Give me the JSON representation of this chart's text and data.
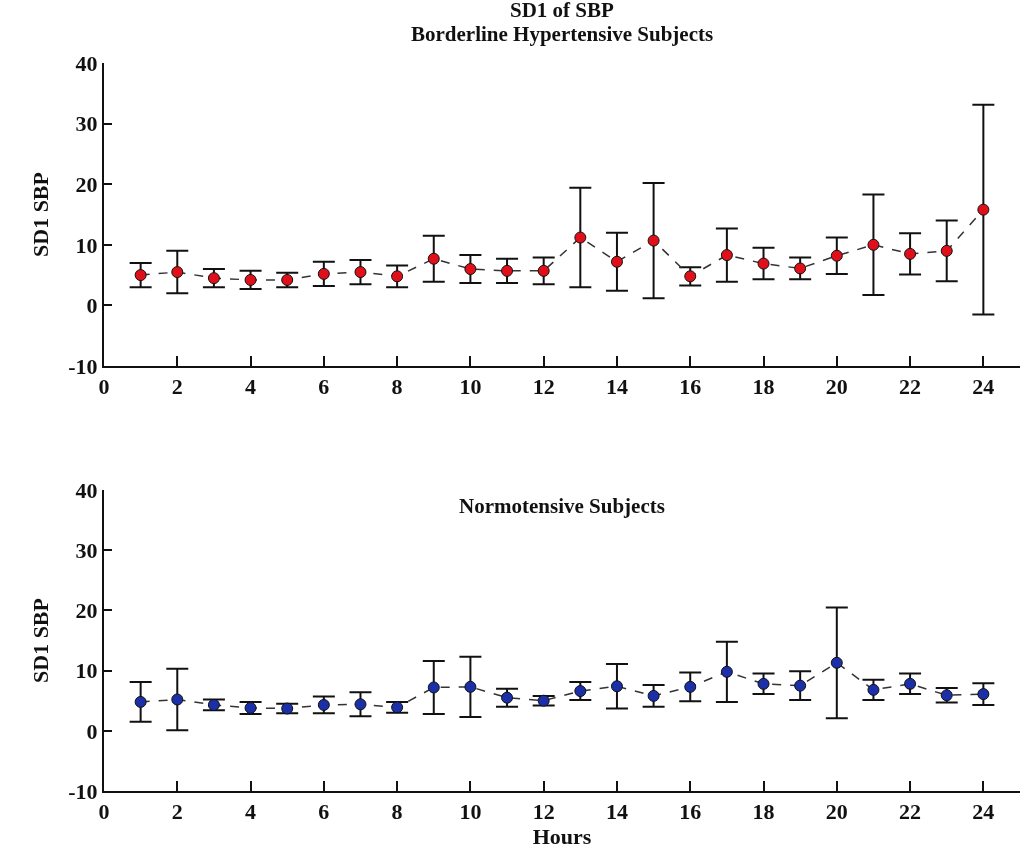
{
  "chart_data": [
    {
      "type": "line",
      "title": "SD1 of SBP",
      "subtitle": "Borderline Hypertensive Subjects",
      "ylabel": "SD1 SBP",
      "x": [
        1,
        2,
        3,
        4,
        5,
        6,
        7,
        8,
        9,
        10,
        11,
        12,
        13,
        14,
        15,
        16,
        17,
        18,
        19,
        20,
        21,
        22,
        23,
        24
      ],
      "series": [
        {
          "color": "#e0101a",
          "values": [
            5,
            5.5,
            4.5,
            4.2,
            4.2,
            5.2,
            5.5,
            4.8,
            7.7,
            6,
            5.7,
            5.7,
            11.2,
            7.2,
            10.7,
            4.8,
            8.3,
            6.9,
            6.1,
            8.2,
            10,
            8.5,
            9,
            15.8
          ],
          "errors": [
            2,
            3.5,
            1.5,
            1.5,
            1.2,
            2,
            2,
            1.8,
            3.8,
            2.3,
            2,
            2.2,
            8.2,
            4.8,
            9.5,
            1.5,
            4.4,
            2.6,
            1.8,
            3,
            8.3,
            3.4,
            5,
            17.3
          ]
        }
      ],
      "xlim": [
        0,
        25
      ],
      "xticks": [
        0,
        2,
        4,
        6,
        8,
        10,
        12,
        14,
        16,
        18,
        20,
        22,
        24
      ],
      "ylim": [
        -10,
        40
      ],
      "yticks": [
        -10,
        0,
        10,
        20,
        30,
        40
      ],
      "marker": "circle",
      "line_style": "dashed",
      "grid": false
    },
    {
      "type": "line",
      "title": "Normotensive Subjects",
      "xlabel": "Hours",
      "ylabel": "SD1 SBP",
      "x": [
        1,
        2,
        3,
        4,
        5,
        6,
        7,
        8,
        9,
        10,
        11,
        12,
        13,
        14,
        15,
        16,
        17,
        18,
        19,
        20,
        21,
        22,
        23,
        24
      ],
      "series": [
        {
          "color": "#1a2fa8",
          "values": [
            4.8,
            5.2,
            4.3,
            3.8,
            3.7,
            4.3,
            4.4,
            3.9,
            7.2,
            7.3,
            5.5,
            5,
            6.6,
            7.4,
            5.8,
            7.3,
            9.8,
            7.8,
            7.5,
            11.3,
            6.8,
            7.8,
            5.9,
            6.1
          ],
          "errors": [
            3.3,
            5.1,
            0.9,
            1,
            0.8,
            1.4,
            2,
            0.9,
            4.4,
            5,
            1.5,
            0.8,
            1.5,
            3.7,
            1.8,
            2.4,
            5,
            1.7,
            2.4,
            9.2,
            1.7,
            1.7,
            1.2,
            1.8
          ]
        }
      ],
      "xlim": [
        0,
        25
      ],
      "xticks": [
        0,
        2,
        4,
        6,
        8,
        10,
        12,
        14,
        16,
        18,
        20,
        22,
        24
      ],
      "ylim": [
        -10,
        40
      ],
      "yticks": [
        -10,
        0,
        10,
        20,
        30,
        40
      ],
      "marker": "circle",
      "line_style": "dashed",
      "grid": false
    }
  ]
}
